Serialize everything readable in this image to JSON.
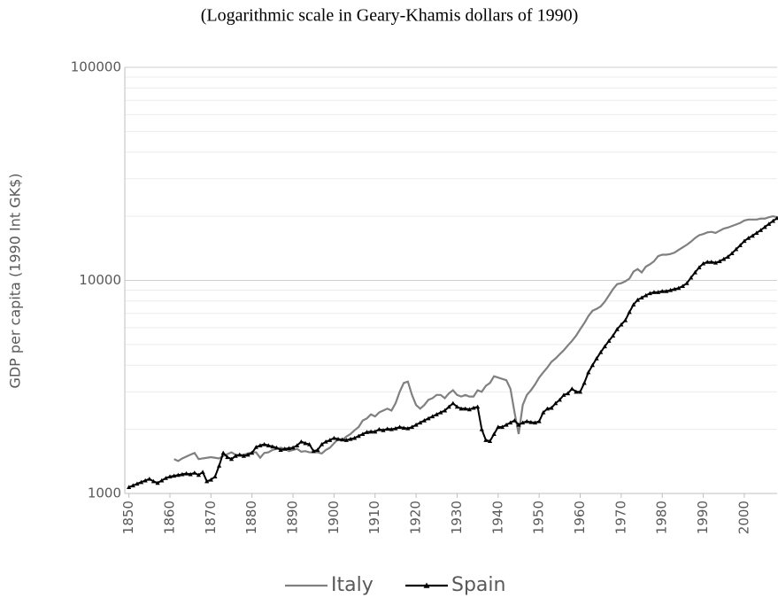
{
  "chart_data": {
    "type": "line",
    "subtitle": "(Logarithmic scale in Geary-Khamis dollars of 1990)",
    "y_label": "GDP per capita (1990 Int GK$)",
    "log_y": true,
    "grid": true,
    "legend": "bottom",
    "xlim": [
      1849,
      2008
    ],
    "ylim": [
      1000,
      100000
    ],
    "xticks": [
      1850,
      1860,
      1870,
      1880,
      1890,
      1900,
      1910,
      1920,
      1930,
      1940,
      1950,
      1960,
      1970,
      1980,
      1990,
      2000
    ],
    "yticks": [
      1000,
      10000,
      100000
    ],
    "yticks_minor": [
      2000,
      3000,
      4000,
      5000,
      6000,
      7000,
      8000,
      9000,
      20000,
      30000,
      40000,
      50000,
      60000,
      70000,
      80000,
      90000
    ],
    "x": [
      1850,
      1851,
      1852,
      1853,
      1854,
      1855,
      1856,
      1857,
      1858,
      1859,
      1860,
      1861,
      1862,
      1863,
      1864,
      1865,
      1866,
      1867,
      1868,
      1869,
      1870,
      1871,
      1872,
      1873,
      1874,
      1875,
      1876,
      1877,
      1878,
      1879,
      1880,
      1881,
      1882,
      1883,
      1884,
      1885,
      1886,
      1887,
      1888,
      1889,
      1890,
      1891,
      1892,
      1893,
      1894,
      1895,
      1896,
      1897,
      1898,
      1899,
      1900,
      1901,
      1902,
      1903,
      1904,
      1905,
      1906,
      1907,
      1908,
      1909,
      1910,
      1911,
      1912,
      1913,
      1914,
      1915,
      1916,
      1917,
      1918,
      1919,
      1920,
      1921,
      1922,
      1923,
      1924,
      1925,
      1926,
      1927,
      1928,
      1929,
      1930,
      1931,
      1932,
      1933,
      1934,
      1935,
      1936,
      1937,
      1938,
      1939,
      1940,
      1941,
      1942,
      1943,
      1944,
      1945,
      1946,
      1947,
      1948,
      1949,
      1950,
      1951,
      1952,
      1953,
      1954,
      1955,
      1956,
      1957,
      1958,
      1959,
      1960,
      1961,
      1962,
      1963,
      1964,
      1965,
      1966,
      1967,
      1968,
      1969,
      1970,
      1971,
      1972,
      1973,
      1974,
      1975,
      1976,
      1977,
      1978,
      1979,
      1980,
      1981,
      1982,
      1983,
      1984,
      1985,
      1986,
      1987,
      1988,
      1989,
      1990,
      1991,
      1992,
      1993,
      1994,
      1995,
      1996,
      1997,
      1998,
      1999,
      2000,
      2001,
      2002,
      2003,
      2004,
      2005,
      2006,
      2007,
      2008
    ],
    "series": [
      {
        "name": "Italy",
        "color": "#808080",
        "marker": "none",
        "values": [
          null,
          null,
          null,
          null,
          null,
          null,
          null,
          null,
          null,
          null,
          null,
          1450,
          1420,
          1460,
          1490,
          1520,
          1550,
          1450,
          1460,
          1470,
          1480,
          1470,
          1460,
          1500,
          1530,
          1560,
          1520,
          1510,
          1520,
          1540,
          1560,
          1560,
          1470,
          1550,
          1560,
          1600,
          1620,
          1640,
          1620,
          1580,
          1600,
          1620,
          1570,
          1580,
          1560,
          1560,
          1560,
          1540,
          1600,
          1640,
          1720,
          1800,
          1780,
          1850,
          1900,
          1980,
          2050,
          2200,
          2250,
          2350,
          2300,
          2400,
          2450,
          2500,
          2450,
          2650,
          3000,
          3300,
          3350,
          2900,
          2600,
          2500,
          2600,
          2750,
          2800,
          2900,
          2900,
          2800,
          2950,
          3050,
          2900,
          2850,
          2900,
          2850,
          2850,
          3050,
          3000,
          3200,
          3300,
          3550,
          3500,
          3450,
          3400,
          3100,
          2400,
          1900,
          2600,
          2900,
          3050,
          3250,
          3500,
          3700,
          3900,
          4150,
          4300,
          4500,
          4700,
          4950,
          5200,
          5500,
          5900,
          6300,
          6800,
          7200,
          7350,
          7550,
          7950,
          8500,
          9100,
          9600,
          9700,
          9900,
          10200,
          11000,
          11300,
          10900,
          11600,
          11900,
          12300,
          13000,
          13200,
          13200,
          13300,
          13500,
          13900,
          14300,
          14700,
          15200,
          15800,
          16300,
          16500,
          16800,
          16900,
          16700,
          17100,
          17500,
          17700,
          18000,
          18300,
          18600,
          19100,
          19300,
          19300,
          19300,
          19500,
          19500,
          19800,
          20000,
          19800
        ]
      },
      {
        "name": "Spain",
        "color": "#000000",
        "marker": "triangle",
        "values": [
          1070,
          1090,
          1110,
          1130,
          1150,
          1170,
          1140,
          1120,
          1150,
          1180,
          1200,
          1210,
          1220,
          1230,
          1240,
          1230,
          1250,
          1220,
          1260,
          1140,
          1160,
          1200,
          1350,
          1550,
          1480,
          1450,
          1500,
          1520,
          1500,
          1520,
          1550,
          1650,
          1680,
          1700,
          1680,
          1660,
          1640,
          1600,
          1620,
          1630,
          1640,
          1680,
          1750,
          1720,
          1700,
          1580,
          1600,
          1700,
          1750,
          1780,
          1820,
          1800,
          1790,
          1780,
          1800,
          1820,
          1860,
          1900,
          1940,
          1950,
          1950,
          2000,
          1980,
          2010,
          2000,
          2020,
          2050,
          2030,
          2020,
          2050,
          2100,
          2150,
          2200,
          2250,
          2300,
          2350,
          2400,
          2450,
          2550,
          2650,
          2550,
          2500,
          2500,
          2480,
          2520,
          2550,
          2000,
          1780,
          1760,
          1900,
          2050,
          2050,
          2100,
          2150,
          2200,
          2100,
          2150,
          2180,
          2160,
          2150,
          2180,
          2400,
          2500,
          2520,
          2650,
          2750,
          2900,
          2950,
          3100,
          3000,
          3000,
          3300,
          3700,
          4000,
          4300,
          4600,
          4900,
          5200,
          5500,
          5900,
          6200,
          6500,
          7100,
          7700,
          8100,
          8300,
          8500,
          8700,
          8800,
          8800,
          8900,
          8900,
          9000,
          9100,
          9200,
          9400,
          9700,
          10300,
          10900,
          11500,
          12000,
          12200,
          12200,
          12100,
          12300,
          12600,
          12900,
          13400,
          14000,
          14600,
          15300,
          15800,
          16200,
          16700,
          17200,
          17800,
          18400,
          19000,
          19600
        ]
      }
    ]
  }
}
